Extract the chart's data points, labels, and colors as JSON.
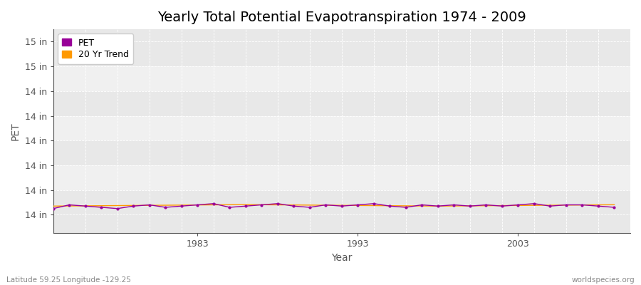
{
  "title": "Yearly Total Potential Evapotranspiration 1974 - 2009",
  "xlabel": "Year",
  "ylabel": "PET",
  "footer_left": "Latitude 59.25 Longitude -129.25",
  "footer_right": "worldspecies.org",
  "years": [
    1974,
    1975,
    1976,
    1977,
    1978,
    1979,
    1980,
    1981,
    1982,
    1983,
    1984,
    1985,
    1986,
    1987,
    1988,
    1989,
    1990,
    1991,
    1992,
    1993,
    1994,
    1995,
    1996,
    1997,
    1998,
    1999,
    2000,
    2001,
    2002,
    2003,
    2004,
    2005,
    2006,
    2007,
    2008,
    2009
  ],
  "pet_values": [
    14.05,
    14.08,
    14.07,
    14.06,
    14.05,
    14.07,
    14.08,
    14.06,
    14.07,
    14.08,
    14.09,
    14.06,
    14.07,
    14.08,
    14.09,
    14.07,
    14.06,
    14.08,
    14.07,
    14.08,
    14.09,
    14.07,
    14.06,
    14.08,
    14.07,
    14.08,
    14.07,
    14.08,
    14.07,
    14.08,
    14.09,
    14.07,
    14.08,
    14.08,
    14.07,
    14.06
  ],
  "trend_values": [
    14.07,
    14.071,
    14.072,
    14.073,
    14.074,
    14.075,
    14.076,
    14.077,
    14.078,
    14.079,
    14.08,
    14.081,
    14.082,
    14.081,
    14.08,
    14.079,
    14.078,
    14.077,
    14.076,
    14.075,
    14.074,
    14.073,
    14.072,
    14.071,
    14.07,
    14.071,
    14.072,
    14.073,
    14.074,
    14.075,
    14.076,
    14.077,
    14.078,
    14.079,
    14.08,
    14.081
  ],
  "pet_color": "#990099",
  "trend_color": "#FF9900",
  "background_color": "#ffffff",
  "band_color1": "#e8e8e8",
  "band_color2": "#f0f0f0",
  "grid_color": "#ffffff",
  "axis_color": "#555555",
  "title_fontsize": 14,
  "label_fontsize": 10,
  "tick_fontsize": 9,
  "xtick_years": [
    1983,
    1993,
    2003
  ],
  "xmin": 1974,
  "xmax": 2010,
  "ylim_low": 13.85,
  "ylim_high": 15.5,
  "ytick_start": 14.0,
  "ytick_end": 15.4,
  "ytick_step": 0.2
}
